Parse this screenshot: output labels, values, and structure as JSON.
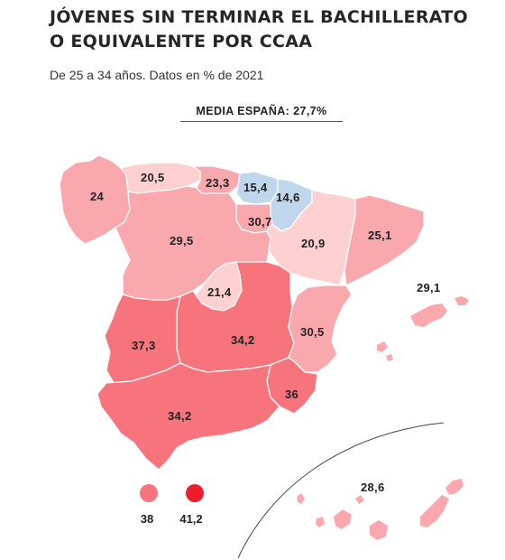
{
  "title_line1": "JÓVENES SIN TERMINAR EL BACHILLERATO",
  "title_line2": "O EQUIVALENTE POR CCAA",
  "subtitle": "De 25 a 34 años. Datos en % de 2021",
  "average_label": "MEDIA ESPAÑA: 27,7%",
  "colors": {
    "very_light_red": "#fdd0d2",
    "light_red": "#f9a8ad",
    "mid_red": "#f98c92",
    "red": "#f7747c",
    "light_blue": "#c0d6ea",
    "legend_min": "#f7747c",
    "legend_max": "#ee1c2c"
  },
  "regions": [
    {
      "name": "Galicia",
      "value": "24"
    },
    {
      "name": "Asturias",
      "value": "20,5"
    },
    {
      "name": "Cantabria",
      "value": "23,3"
    },
    {
      "name": "País Vasco",
      "value": "15,4"
    },
    {
      "name": "Navarra",
      "value": "14,6"
    },
    {
      "name": "La Rioja",
      "value": "30,7"
    },
    {
      "name": "Aragón",
      "value": "20,9"
    },
    {
      "name": "Cataluña",
      "value": "25,1"
    },
    {
      "name": "Castilla y León",
      "value": "29,5"
    },
    {
      "name": "Madrid",
      "value": "21,4"
    },
    {
      "name": "Castilla-La Mancha",
      "value": "34,2"
    },
    {
      "name": "Comunidad Valenciana",
      "value": "30,5"
    },
    {
      "name": "Baleares",
      "value": "29,1"
    },
    {
      "name": "Extremadura",
      "value": "37,3"
    },
    {
      "name": "Murcia",
      "value": "36"
    },
    {
      "name": "Andalucía",
      "value": "34,2"
    },
    {
      "name": "Canarias",
      "value": "28,6"
    }
  ],
  "legend": {
    "min_label": "38",
    "max_label": "41,2"
  }
}
